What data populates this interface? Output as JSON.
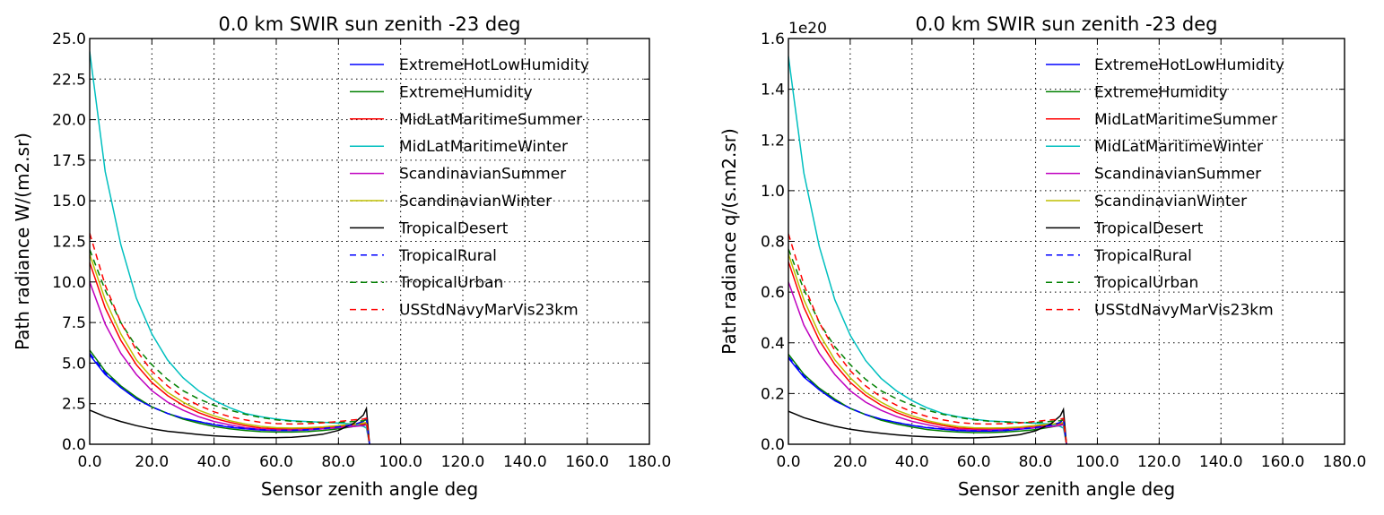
{
  "chart_data": [
    {
      "type": "line",
      "title": "0.0 km SWIR sun zenith -23 deg",
      "xlabel": "Sensor zenith angle deg",
      "ylabel": "Path radiance W/(m2.sr)",
      "xlim": [
        0,
        180
      ],
      "ylim": [
        0,
        25
      ],
      "xticks": [
        "0.0",
        "20.0",
        "40.0",
        "60.0",
        "80.0",
        "100.0",
        "120.0",
        "140.0",
        "160.0",
        "180.0"
      ],
      "yticks": [
        "0.0",
        "2.5",
        "5.0",
        "7.5",
        "10.0",
        "12.5",
        "15.0",
        "17.5",
        "20.0",
        "22.5",
        "25.0"
      ],
      "exponent_label": "",
      "grid": true,
      "legend_position": "top-right",
      "x": [
        0,
        5,
        10,
        15,
        20,
        25,
        30,
        35,
        40,
        45,
        50,
        55,
        60,
        65,
        70,
        75,
        80,
        85,
        88,
        89,
        90
      ],
      "series": [
        {
          "name": "ExtremeHotLowHumidity",
          "color": "#0000ff",
          "dash": "solid",
          "values": [
            5.5,
            4.3,
            3.5,
            2.8,
            2.3,
            1.9,
            1.6,
            1.4,
            1.2,
            1.05,
            0.95,
            0.88,
            0.85,
            0.85,
            0.88,
            0.95,
            1.05,
            1.2,
            1.4,
            1.6,
            0
          ]
        },
        {
          "name": "ExtremeHumidity",
          "color": "#008000",
          "dash": "solid",
          "values": [
            5.8,
            4.5,
            3.6,
            2.9,
            2.3,
            1.9,
            1.55,
            1.3,
            1.1,
            0.95,
            0.85,
            0.78,
            0.75,
            0.75,
            0.78,
            0.85,
            0.95,
            1.1,
            1.2,
            1.3,
            0
          ]
        },
        {
          "name": "MidLatMaritimeSummer",
          "color": "#ff0000",
          "dash": "solid",
          "values": [
            11.2,
            8.4,
            6.4,
            4.9,
            3.8,
            3.0,
            2.4,
            1.95,
            1.6,
            1.35,
            1.15,
            1.0,
            0.95,
            0.95,
            0.97,
            1.02,
            1.1,
            1.2,
            1.25,
            1.3,
            0
          ]
        },
        {
          "name": "MidLatMaritimeWinter",
          "color": "#00bfbf",
          "dash": "solid",
          "values": [
            24.2,
            16.8,
            12.3,
            9.0,
            6.8,
            5.2,
            4.1,
            3.3,
            2.7,
            2.25,
            1.9,
            1.7,
            1.55,
            1.45,
            1.4,
            1.35,
            1.3,
            1.25,
            1.1,
            1.0,
            0
          ]
        },
        {
          "name": "ScandinavianSummer",
          "color": "#bf00bf",
          "dash": "solid",
          "values": [
            10.0,
            7.4,
            5.6,
            4.3,
            3.3,
            2.6,
            2.1,
            1.7,
            1.4,
            1.2,
            1.02,
            0.92,
            0.88,
            0.88,
            0.9,
            0.95,
            1.02,
            1.1,
            1.15,
            1.2,
            0
          ]
        },
        {
          "name": "ScandinavianWinter",
          "color": "#bfbf00",
          "dash": "solid",
          "values": [
            11.7,
            8.9,
            6.8,
            5.2,
            4.1,
            3.2,
            2.6,
            2.1,
            1.75,
            1.45,
            1.25,
            1.1,
            1.02,
            1.0,
            1.02,
            1.07,
            1.15,
            1.25,
            1.3,
            1.35,
            0
          ]
        },
        {
          "name": "TropicalDesert",
          "color": "#000000",
          "dash": "solid",
          "values": [
            2.1,
            1.7,
            1.4,
            1.15,
            0.95,
            0.8,
            0.7,
            0.6,
            0.52,
            0.47,
            0.43,
            0.41,
            0.41,
            0.43,
            0.5,
            0.62,
            0.85,
            1.3,
            1.8,
            2.2,
            0
          ]
        },
        {
          "name": "TropicalRural",
          "color": "#0000ff",
          "dash": "dashed",
          "values": [
            5.6,
            4.4,
            3.5,
            2.8,
            2.3,
            1.9,
            1.6,
            1.4,
            1.22,
            1.08,
            0.98,
            0.9,
            0.86,
            0.86,
            0.9,
            0.97,
            1.07,
            1.22,
            1.4,
            1.6,
            0
          ]
        },
        {
          "name": "TropicalUrban",
          "color": "#008000",
          "dash": "dashed",
          "values": [
            12.0,
            9.5,
            7.5,
            6.0,
            4.9,
            4.0,
            3.3,
            2.8,
            2.4,
            2.1,
            1.85,
            1.65,
            1.5,
            1.42,
            1.38,
            1.35,
            1.35,
            1.4,
            1.45,
            1.5,
            0
          ]
        },
        {
          "name": "USStdNavyMarVis23km",
          "color": "#ff0000",
          "dash": "dashed",
          "values": [
            13.0,
            9.8,
            7.5,
            5.8,
            4.5,
            3.6,
            2.9,
            2.4,
            2.0,
            1.7,
            1.5,
            1.35,
            1.27,
            1.25,
            1.27,
            1.32,
            1.4,
            1.5,
            1.55,
            1.6,
            0
          ]
        }
      ]
    },
    {
      "type": "line",
      "title": "0.0 km SWIR sun zenith -23 deg",
      "xlabel": "Sensor zenith angle deg",
      "ylabel": "Path radiance q/(s.m2.sr)",
      "xlim": [
        0,
        180
      ],
      "ylim": [
        0,
        1.6
      ],
      "xticks": [
        "0.0",
        "20.0",
        "40.0",
        "60.0",
        "80.0",
        "100.0",
        "120.0",
        "140.0",
        "160.0",
        "180.0"
      ],
      "yticks": [
        "0.0",
        "0.2",
        "0.4",
        "0.6",
        "0.8",
        "1.0",
        "1.2",
        "1.4",
        "1.6"
      ],
      "exponent_label": "1e20",
      "grid": true,
      "legend_position": "top-right",
      "x": [
        0,
        5,
        10,
        15,
        20,
        25,
        30,
        35,
        40,
        45,
        50,
        55,
        60,
        65,
        70,
        75,
        80,
        85,
        88,
        89,
        90
      ],
      "series": [
        {
          "name": "ExtremeHotLowHumidity",
          "color": "#0000ff",
          "dash": "solid",
          "values": [
            0.34,
            0.265,
            0.215,
            0.172,
            0.142,
            0.117,
            0.099,
            0.086,
            0.074,
            0.065,
            0.059,
            0.054,
            0.052,
            0.052,
            0.054,
            0.059,
            0.065,
            0.074,
            0.086,
            0.099,
            0
          ]
        },
        {
          "name": "ExtremeHumidity",
          "color": "#008000",
          "dash": "solid",
          "values": [
            0.355,
            0.276,
            0.221,
            0.178,
            0.141,
            0.117,
            0.095,
            0.08,
            0.068,
            0.058,
            0.052,
            0.048,
            0.046,
            0.046,
            0.048,
            0.052,
            0.058,
            0.068,
            0.074,
            0.08,
            0
          ]
        },
        {
          "name": "MidLatMaritimeSummer",
          "color": "#ff0000",
          "dash": "solid",
          "values": [
            0.72,
            0.54,
            0.41,
            0.315,
            0.244,
            0.193,
            0.154,
            0.125,
            0.103,
            0.087,
            0.074,
            0.064,
            0.061,
            0.061,
            0.062,
            0.066,
            0.071,
            0.077,
            0.08,
            0.083,
            0
          ]
        },
        {
          "name": "MidLatMaritimeWinter",
          "color": "#00bfbf",
          "dash": "solid",
          "values": [
            1.53,
            1.07,
            0.78,
            0.57,
            0.43,
            0.33,
            0.26,
            0.21,
            0.172,
            0.143,
            0.121,
            0.108,
            0.099,
            0.092,
            0.089,
            0.086,
            0.083,
            0.08,
            0.07,
            0.064,
            0
          ]
        },
        {
          "name": "ScandinavianSummer",
          "color": "#bf00bf",
          "dash": "solid",
          "values": [
            0.64,
            0.47,
            0.358,
            0.275,
            0.211,
            0.166,
            0.134,
            0.109,
            0.09,
            0.077,
            0.065,
            0.059,
            0.056,
            0.056,
            0.058,
            0.061,
            0.065,
            0.07,
            0.074,
            0.077,
            0
          ]
        },
        {
          "name": "ScandinavianWinter",
          "color": "#bfbf00",
          "dash": "solid",
          "values": [
            0.75,
            0.57,
            0.435,
            0.333,
            0.262,
            0.205,
            0.166,
            0.134,
            0.112,
            0.093,
            0.08,
            0.07,
            0.065,
            0.064,
            0.065,
            0.068,
            0.074,
            0.08,
            0.083,
            0.086,
            0
          ]
        },
        {
          "name": "TropicalDesert",
          "color": "#000000",
          "dash": "solid",
          "values": [
            0.13,
            0.105,
            0.087,
            0.071,
            0.059,
            0.05,
            0.043,
            0.037,
            0.032,
            0.029,
            0.027,
            0.025,
            0.025,
            0.027,
            0.031,
            0.038,
            0.053,
            0.081,
            0.112,
            0.137,
            0
          ]
        },
        {
          "name": "TropicalRural",
          "color": "#0000ff",
          "dash": "dashed",
          "values": [
            0.345,
            0.27,
            0.215,
            0.172,
            0.142,
            0.117,
            0.099,
            0.086,
            0.075,
            0.066,
            0.06,
            0.055,
            0.053,
            0.053,
            0.055,
            0.06,
            0.066,
            0.075,
            0.086,
            0.099,
            0
          ]
        },
        {
          "name": "TropicalUrban",
          "color": "#008000",
          "dash": "dashed",
          "values": [
            0.77,
            0.61,
            0.48,
            0.385,
            0.314,
            0.256,
            0.211,
            0.179,
            0.154,
            0.134,
            0.118,
            0.106,
            0.096,
            0.091,
            0.088,
            0.086,
            0.086,
            0.09,
            0.093,
            0.096,
            0
          ]
        },
        {
          "name": "USStdNavyMarVis23km",
          "color": "#ff0000",
          "dash": "dashed",
          "values": [
            0.83,
            0.63,
            0.48,
            0.37,
            0.29,
            0.23,
            0.186,
            0.154,
            0.128,
            0.109,
            0.096,
            0.086,
            0.081,
            0.08,
            0.081,
            0.084,
            0.09,
            0.096,
            0.099,
            0.102,
            0
          ]
        }
      ]
    }
  ]
}
